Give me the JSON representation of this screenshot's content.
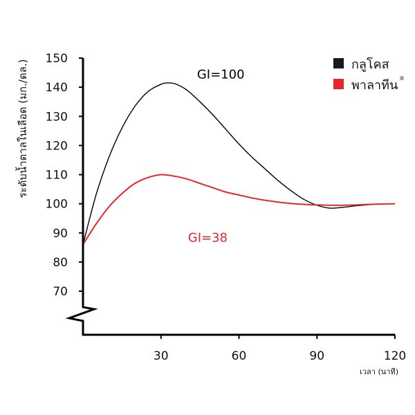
{
  "chart_data": {
    "type": "line",
    "title": "",
    "xlabel": "เวลา (นาที)",
    "ylabel": "ระดับน้ำตาลในเลือด (มก./ดล.)",
    "x_ticks": [
      30,
      60,
      90,
      120
    ],
    "y_ticks": [
      70,
      80,
      90,
      100,
      110,
      120,
      130,
      140,
      150
    ],
    "xlim": [
      0,
      120
    ],
    "ylim": [
      70,
      150
    ],
    "y_axis_break": true,
    "grid": false,
    "legend_position": "top-right",
    "series": [
      {
        "name": "กลูโคส",
        "color": "#000000",
        "x": [
          0,
          5,
          10,
          15,
          20,
          25,
          30,
          33,
          36,
          40,
          45,
          50,
          55,
          60,
          65,
          70,
          75,
          80,
          85,
          90,
          95,
          100,
          105,
          110,
          115,
          120
        ],
        "y": [
          86,
          103,
          116,
          126,
          133.5,
          138.5,
          141,
          141.5,
          141,
          139,
          135,
          130.5,
          125.5,
          120.5,
          116,
          112,
          108,
          104.5,
          101.5,
          99.5,
          98.5,
          98.8,
          99.3,
          99.7,
          99.9,
          100
        ]
      },
      {
        "name": "พาลาทีน",
        "name_mark": "®",
        "color": "#e8262a",
        "x": [
          0,
          5,
          10,
          15,
          20,
          25,
          30,
          35,
          40,
          45,
          50,
          55,
          60,
          65,
          70,
          75,
          80,
          85,
          90,
          95,
          100,
          105,
          110,
          115,
          120
        ],
        "y": [
          86,
          93,
          99,
          103.5,
          107,
          109,
          110,
          109.5,
          108.5,
          107,
          105.5,
          104,
          103,
          102,
          101.2,
          100.6,
          100.1,
          99.8,
          99.6,
          99.5,
          99.5,
          99.6,
          99.8,
          99.9,
          100
        ]
      }
    ],
    "annotations": [
      {
        "text": "GI=100",
        "color": "#000000",
        "x": 53,
        "y": 143
      },
      {
        "text": "GI=38",
        "color": "#e8262a",
        "x": 48,
        "y": 87
      }
    ]
  }
}
